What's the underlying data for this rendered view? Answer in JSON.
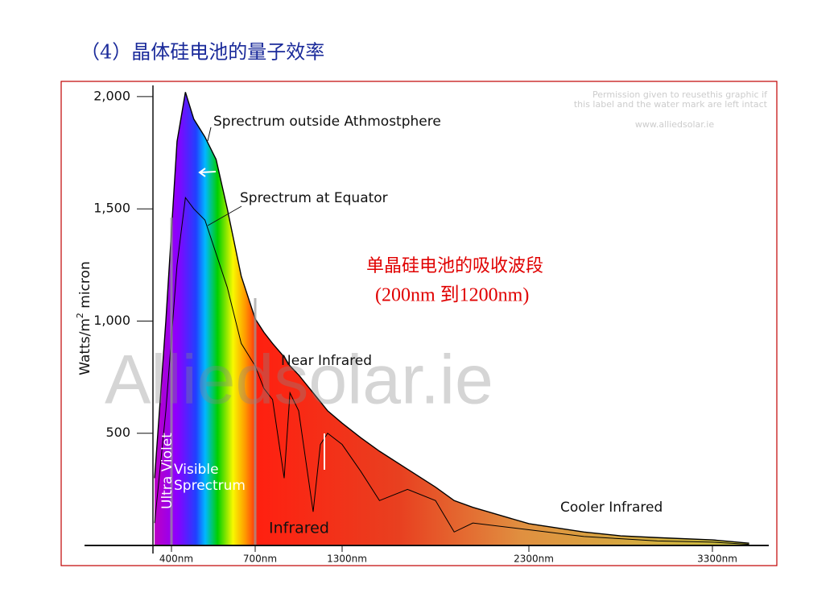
{
  "title": "（4）晶体硅电池的量子效率",
  "chart_data": {
    "type": "area",
    "y_label": "Watts/m",
    "y_label_sup": "2",
    "y_label_tail": " micron",
    "x": [
      340,
      380,
      420,
      450,
      480,
      520,
      560,
      600,
      650,
      700,
      760,
      820,
      900,
      940,
      1000,
      1100,
      1150,
      1200,
      1300,
      1400,
      1500,
      1650,
      1800,
      1900,
      2000,
      2300,
      2600,
      2800,
      3000,
      3300,
      3500
    ],
    "series": [
      {
        "name": "Sprectrum outside Athmostphere",
        "color": "#000000",
        "values": [
          300,
          1000,
          1800,
          2020,
          1900,
          1820,
          1720,
          1500,
          1200,
          1010,
          950,
          900,
          840,
          800,
          760,
          680,
          640,
          600,
          545,
          480,
          420,
          340,
          260,
          200,
          170,
          97,
          60,
          43,
          35,
          25,
          10
        ]
      },
      {
        "name": "Sprectrum at Equator",
        "color": "#000000",
        "values": [
          100,
          600,
          1250,
          1550,
          1500,
          1450,
          1300,
          1150,
          900,
          800,
          700,
          650,
          300,
          680,
          600,
          150,
          450,
          500,
          450,
          330,
          200,
          250,
          200,
          60,
          100,
          70,
          40,
          30,
          20,
          15,
          5
        ]
      }
    ],
    "ylim": [
      0,
      2050
    ],
    "yticks": [
      {
        "value": 500,
        "label": "500"
      },
      {
        "value": 1000,
        "label": "1,000"
      },
      {
        "value": 1500,
        "label": "1,500"
      },
      {
        "value": 2000,
        "label": "2,000"
      }
    ],
    "xlim": [
      334,
      3607
    ],
    "xticks": [
      {
        "value": 400,
        "label": "400nm"
      },
      {
        "value": 700,
        "label": "700nm"
      },
      {
        "value": 1300,
        "label": "1300nm"
      },
      {
        "value": 2300,
        "label": "2300nm"
      },
      {
        "value": 3300,
        "label": "3300nm"
      }
    ],
    "annotations": {
      "uv": "Ultra Violet",
      "visible_1": "Visible",
      "visible_2": "Sprectrum",
      "infrared": "Infrared",
      "near_infrared": "Near Infrared",
      "cooler_infrared": "Cooler Infrared"
    },
    "permission": [
      "Permission given to reusethis graphic if",
      "this label and the water mark are left intact"
    ],
    "website": "www.alliedsolar.ie",
    "watermark": "Alliedsolar.ie"
  },
  "note": [
    "单晶硅电池的吸收波段",
    "(200nm 到1200nm)"
  ]
}
